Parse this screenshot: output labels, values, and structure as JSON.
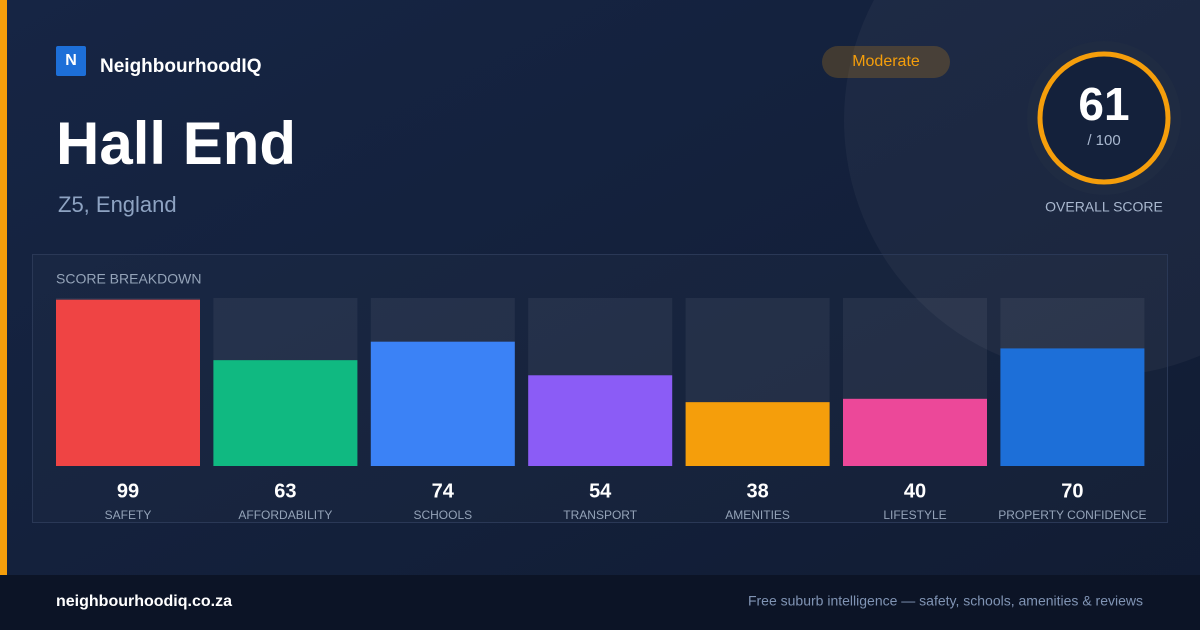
{
  "brand": {
    "logo": "N",
    "name": "NeighbourhoodIQ"
  },
  "place": {
    "name": "Hall End",
    "location": "Z5, England"
  },
  "rating": {
    "badge": "Moderate",
    "score": 61,
    "score_suffix": "/ 100",
    "label": "OVERALL SCORE"
  },
  "chart_data": {
    "type": "bar",
    "title": "SCORE BREAKDOWN",
    "categories": [
      "SAFETY",
      "AFFORDABILITY",
      "SCHOOLS",
      "TRANSPORT",
      "AMENITIES",
      "LIFESTYLE",
      "PROPERTY CONFIDENCE"
    ],
    "values": [
      99,
      63,
      74,
      54,
      38,
      40,
      70
    ],
    "colors": [
      "#ef4444",
      "#10b981",
      "#3b82f6",
      "#8b5cf6",
      "#f59e0b",
      "#ec4899",
      "#1d6fd8"
    ],
    "ylim": [
      0,
      100
    ]
  },
  "footer": {
    "url": "neighbourhoodiq.co.za",
    "tagline": "Free suburb intelligence — safety, schools, amenities & reviews"
  }
}
